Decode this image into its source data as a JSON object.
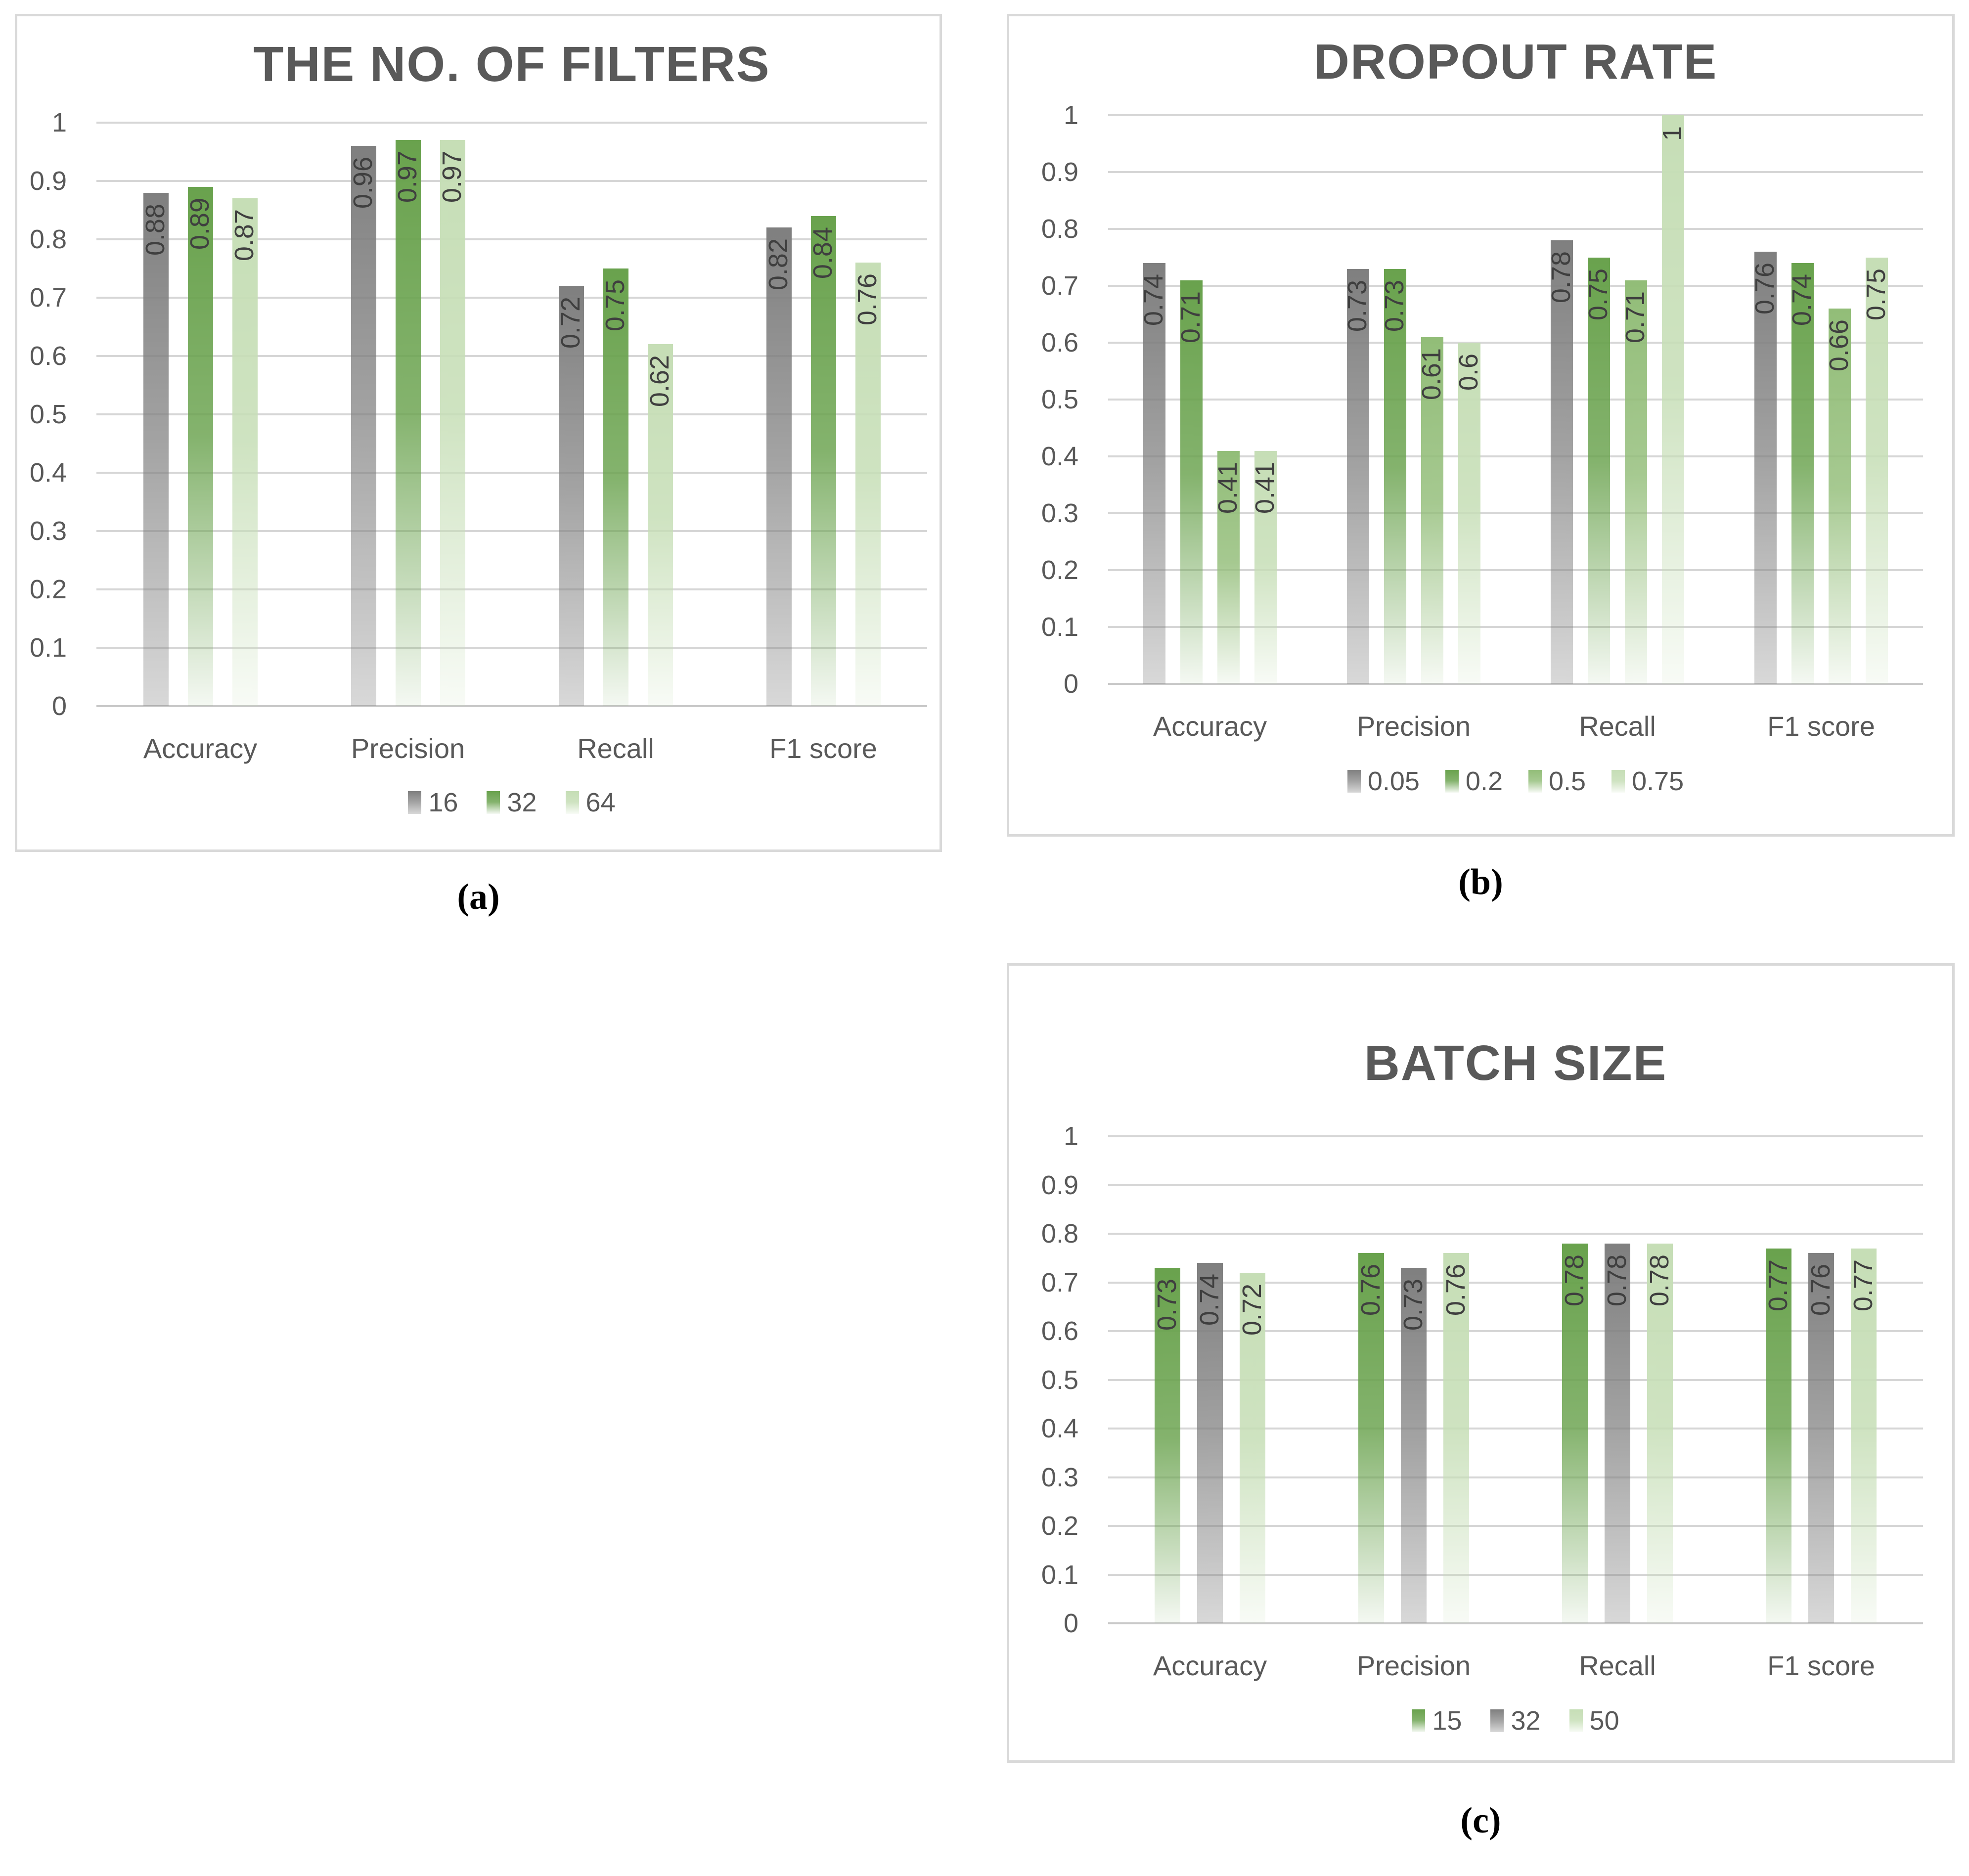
{
  "chart_data": [
    {
      "id": "filters",
      "type": "bar",
      "title": "THE NO. OF FILTERS",
      "caption": "(a)",
      "xlabel": "",
      "ylabel": "",
      "ylim": [
        0,
        1
      ],
      "grid": true,
      "legend_position": "bottom",
      "data_labels": true,
      "categories": [
        "Accuracy",
        "Precision",
        "Recall",
        "F1 score"
      ],
      "y_ticks": [
        "1",
        "0.9",
        "0.8",
        "0.7",
        "0.6",
        "0.5",
        "0.4",
        "0.3",
        "0.2",
        "0.1",
        "0"
      ],
      "series": [
        {
          "name": "16",
          "color": "gray",
          "values": [
            0.88,
            0.96,
            0.72,
            0.82
          ]
        },
        {
          "name": "32",
          "color": "green",
          "values": [
            0.89,
            0.97,
            0.75,
            0.84
          ]
        },
        {
          "name": "64",
          "color": "lightgreen",
          "values": [
            0.87,
            0.97,
            0.62,
            0.76
          ]
        }
      ]
    },
    {
      "id": "dropout",
      "type": "bar",
      "title": "DROPOUT RATE",
      "caption": "(b)",
      "xlabel": "",
      "ylabel": "",
      "ylim": [
        0,
        1
      ],
      "grid": true,
      "legend_position": "bottom",
      "data_labels": true,
      "categories": [
        "Accuracy",
        "Precision",
        "Recall",
        "F1 score"
      ],
      "y_ticks": [
        "1",
        "0.9",
        "0.8",
        "0.7",
        "0.6",
        "0.5",
        "0.4",
        "0.3",
        "0.2",
        "0.1",
        "0"
      ],
      "series": [
        {
          "name": "0.05",
          "color": "gray",
          "values": [
            0.74,
            0.73,
            0.78,
            0.76
          ]
        },
        {
          "name": "0.2",
          "color": "green",
          "values": [
            0.71,
            0.73,
            0.75,
            0.74
          ]
        },
        {
          "name": "0.5",
          "color": "medgreen",
          "values": [
            0.41,
            0.61,
            0.71,
            0.66
          ]
        },
        {
          "name": "0.75",
          "color": "lightgreen",
          "values": [
            0.41,
            0.6,
            1,
            0.75
          ]
        }
      ]
    },
    {
      "id": "batch",
      "type": "bar",
      "title": "BATCH SIZE",
      "caption": "(c)",
      "xlabel": "",
      "ylabel": "",
      "ylim": [
        0,
        1
      ],
      "grid": true,
      "legend_position": "bottom",
      "data_labels": true,
      "categories": [
        "Accuracy",
        "Precision",
        "Recall",
        "F1 score"
      ],
      "y_ticks": [
        "1",
        "0.9",
        "0.8",
        "0.7",
        "0.6",
        "0.5",
        "0.4",
        "0.3",
        "0.2",
        "0.1",
        "0"
      ],
      "series": [
        {
          "name": "15",
          "color": "green",
          "values": [
            0.73,
            0.76,
            0.78,
            0.77
          ]
        },
        {
          "name": "32",
          "color": "gray",
          "values": [
            0.74,
            0.73,
            0.78,
            0.76
          ]
        },
        {
          "name": "50",
          "color": "lightgreen",
          "values": [
            0.72,
            0.76,
            0.78,
            0.77
          ]
        }
      ]
    }
  ],
  "palette": {
    "gray": {
      "hex": "#7f7f7f",
      "mid_alpha": 0.72,
      "bottom_alpha": 0.3
    },
    "green": {
      "hex": "#69a24d",
      "mid_alpha": 0.82,
      "bottom_alpha": 0.07
    },
    "medgreen": {
      "hex": "#92bd78",
      "mid_alpha": 0.82,
      "bottom_alpha": 0.08
    },
    "lightgreen": {
      "hex": "#c6deb6",
      "mid_alpha": 0.85,
      "bottom_alpha": 0.12
    }
  },
  "text_colors": {
    "title": "#595959",
    "ticks": "#595959",
    "categories": "#595959",
    "data_labels": "#3f3f3f",
    "caption": "#000000"
  },
  "gridline_color": "#d6d6d6"
}
